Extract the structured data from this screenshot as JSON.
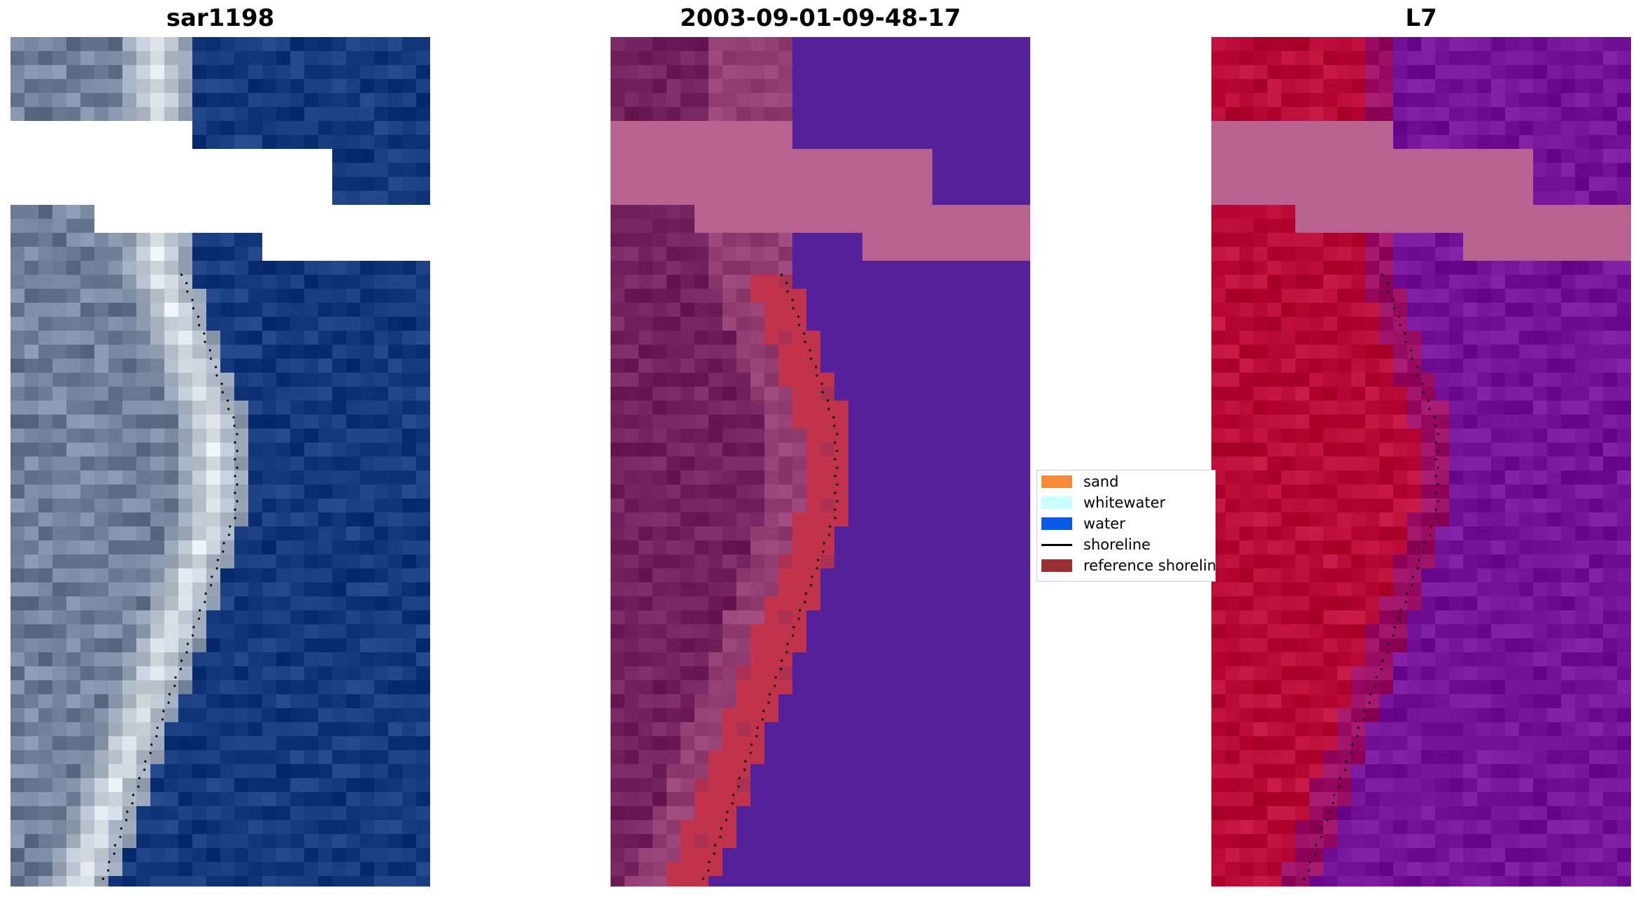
{
  "panels": [
    {
      "title": "sar1198"
    },
    {
      "title": "2003-09-01-09-48-17"
    },
    {
      "title": "L7"
    }
  ],
  "legend": {
    "items": [
      {
        "label": "sand",
        "color": "#f68a36",
        "kind": "patch"
      },
      {
        "label": "whitewater",
        "color": "#c9ffff",
        "kind": "patch"
      },
      {
        "label": "water",
        "color": "#0a5ae8",
        "kind": "patch"
      },
      {
        "label": "shoreline",
        "color": "#000000",
        "kind": "line"
      },
      {
        "label": "reference shoreline",
        "color": "#9b2f34",
        "kind": "patch"
      }
    ]
  },
  "colors": {
    "rgb_land": "#7f8fa8",
    "rgb_water": "#1f4286",
    "rgb_whitewater": "#e8eef2",
    "class_land": "#7a2a64",
    "class_water": "#55219b",
    "class_mask": "#b9628f",
    "class_reference": "#c0334a",
    "mndwi_land": "#c0113f",
    "mndwi_water": "#7c1aa0",
    "mndwi_mask": "#b9628f"
  }
}
